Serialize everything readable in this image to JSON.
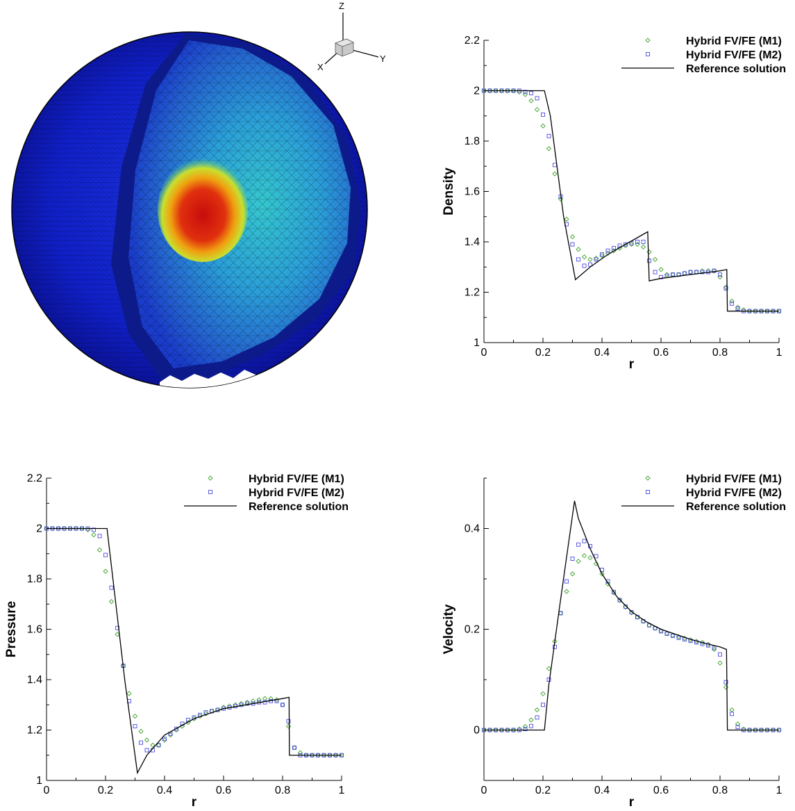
{
  "figure": {
    "triad": {
      "x_label": "X",
      "y_label": "Y",
      "z_label": "Z"
    }
  },
  "colors": {
    "m1": "#3fa32a",
    "m2": "#4a4ae0",
    "reference": "#000000",
    "mesh_low": "#0a10b8",
    "mesh_high": "#d10f0f"
  },
  "chart_data": [
    {
      "type": "line",
      "id": "density",
      "xlabel": "r",
      "ylabel": "Density",
      "xlim": [
        0,
        1
      ],
      "ylim": [
        1,
        2.2
      ],
      "xticks": [
        "0",
        "0.2",
        "0.4",
        "0.6",
        "0.8",
        "1"
      ],
      "yticks": [
        "1",
        "1.2",
        "1.4",
        "1.6",
        "1.8",
        "2",
        "2.2"
      ],
      "legend_position": "top-right",
      "grid": false,
      "series": [
        {
          "name": "Hybrid FV/FE (M1)",
          "marker": "diamond",
          "x": [
            0,
            0.02,
            0.04,
            0.06,
            0.08,
            0.1,
            0.12,
            0.14,
            0.16,
            0.18,
            0.2,
            0.22,
            0.24,
            0.26,
            0.28,
            0.3,
            0.32,
            0.34,
            0.36,
            0.38,
            0.4,
            0.42,
            0.44,
            0.46,
            0.48,
            0.5,
            0.52,
            0.54,
            0.56,
            0.58,
            0.6,
            0.62,
            0.64,
            0.66,
            0.68,
            0.7,
            0.72,
            0.74,
            0.76,
            0.78,
            0.8,
            0.82,
            0.84,
            0.86,
            0.88,
            0.9,
            0.92,
            0.94,
            0.96,
            0.98,
            1.0
          ],
          "y": [
            2.0,
            2.0,
            2.0,
            2.0,
            2.0,
            2.0,
            1.995,
            1.985,
            1.96,
            1.925,
            1.86,
            1.77,
            1.67,
            1.57,
            1.49,
            1.42,
            1.37,
            1.34,
            1.33,
            1.335,
            1.345,
            1.355,
            1.365,
            1.375,
            1.385,
            1.39,
            1.39,
            1.38,
            1.36,
            1.33,
            1.29,
            1.27,
            1.27,
            1.27,
            1.275,
            1.28,
            1.28,
            1.285,
            1.285,
            1.285,
            1.26,
            1.22,
            1.165,
            1.14,
            1.13,
            1.125,
            1.125,
            1.125,
            1.125,
            1.125,
            1.125
          ]
        },
        {
          "name": "Hybrid FV/FE (M2)",
          "marker": "square",
          "x": [
            0,
            0.02,
            0.04,
            0.06,
            0.08,
            0.1,
            0.12,
            0.14,
            0.16,
            0.18,
            0.2,
            0.22,
            0.24,
            0.26,
            0.28,
            0.3,
            0.32,
            0.34,
            0.36,
            0.38,
            0.4,
            0.42,
            0.44,
            0.46,
            0.48,
            0.5,
            0.52,
            0.54,
            0.56,
            0.58,
            0.6,
            0.62,
            0.64,
            0.66,
            0.68,
            0.7,
            0.72,
            0.74,
            0.76,
            0.78,
            0.8,
            0.82,
            0.84,
            0.86,
            0.88,
            0.9,
            0.92,
            0.94,
            0.96,
            0.98,
            1.0
          ],
          "y": [
            2.0,
            2.0,
            2.0,
            2.0,
            2.0,
            2.0,
            2.0,
            1.995,
            1.99,
            1.97,
            1.905,
            1.82,
            1.705,
            1.58,
            1.47,
            1.39,
            1.33,
            1.305,
            1.31,
            1.33,
            1.35,
            1.365,
            1.375,
            1.385,
            1.39,
            1.395,
            1.4,
            1.4,
            1.325,
            1.28,
            1.26,
            1.265,
            1.27,
            1.27,
            1.275,
            1.28,
            1.28,
            1.28,
            1.28,
            1.285,
            1.27,
            1.215,
            1.155,
            1.135,
            1.125,
            1.125,
            1.125,
            1.125,
            1.125,
            1.125,
            1.125
          ]
        },
        {
          "name": "Reference solution",
          "marker": "line",
          "x": [
            0,
            0.205,
            0.225,
            0.27,
            0.31,
            0.36,
            0.42,
            0.48,
            0.54,
            0.555,
            0.56,
            0.6,
            0.7,
            0.8,
            0.823,
            0.825,
            1.0
          ],
          "y": [
            2.0,
            2.0,
            1.9,
            1.5,
            1.25,
            1.3,
            1.35,
            1.39,
            1.43,
            1.44,
            1.245,
            1.255,
            1.27,
            1.285,
            1.29,
            1.125,
            1.125
          ]
        }
      ]
    },
    {
      "type": "line",
      "id": "pressure",
      "xlabel": "r",
      "ylabel": "Pressure",
      "xlim": [
        0,
        1
      ],
      "ylim": [
        1,
        2.2
      ],
      "xticks": [
        "0",
        "0.2",
        "0.4",
        "0.6",
        "0.8",
        "1"
      ],
      "yticks": [
        "1",
        "1.2",
        "1.4",
        "1.6",
        "1.8",
        "2",
        "2.2"
      ],
      "legend_position": "top-right",
      "grid": false,
      "series": [
        {
          "name": "Hybrid FV/FE (M1)",
          "marker": "diamond",
          "x": [
            0,
            0.02,
            0.04,
            0.06,
            0.08,
            0.1,
            0.12,
            0.14,
            0.16,
            0.18,
            0.2,
            0.22,
            0.24,
            0.26,
            0.28,
            0.3,
            0.32,
            0.34,
            0.36,
            0.38,
            0.4,
            0.42,
            0.44,
            0.46,
            0.48,
            0.5,
            0.52,
            0.54,
            0.56,
            0.58,
            0.6,
            0.62,
            0.64,
            0.66,
            0.68,
            0.7,
            0.72,
            0.74,
            0.76,
            0.78,
            0.8,
            0.82,
            0.84,
            0.86,
            0.88,
            0.9,
            0.92,
            0.94,
            0.96,
            0.98,
            1.0
          ],
          "y": [
            2.0,
            2.0,
            2.0,
            2.0,
            2.0,
            2.0,
            2.0,
            1.995,
            1.975,
            1.915,
            1.83,
            1.71,
            1.58,
            1.455,
            1.345,
            1.255,
            1.195,
            1.16,
            1.14,
            1.14,
            1.16,
            1.18,
            1.2,
            1.215,
            1.23,
            1.245,
            1.255,
            1.265,
            1.275,
            1.28,
            1.29,
            1.295,
            1.3,
            1.305,
            1.31,
            1.315,
            1.32,
            1.325,
            1.325,
            1.32,
            1.3,
            1.215,
            1.13,
            1.11,
            1.1,
            1.1,
            1.1,
            1.1,
            1.1,
            1.1,
            1.1
          ]
        },
        {
          "name": "Hybrid FV/FE (M2)",
          "marker": "square",
          "x": [
            0,
            0.02,
            0.04,
            0.06,
            0.08,
            0.1,
            0.12,
            0.14,
            0.16,
            0.18,
            0.2,
            0.22,
            0.24,
            0.26,
            0.28,
            0.3,
            0.32,
            0.34,
            0.36,
            0.38,
            0.4,
            0.42,
            0.44,
            0.46,
            0.48,
            0.5,
            0.52,
            0.54,
            0.56,
            0.58,
            0.6,
            0.62,
            0.64,
            0.66,
            0.68,
            0.7,
            0.72,
            0.74,
            0.76,
            0.78,
            0.8,
            0.82,
            0.84,
            0.86,
            0.88,
            0.9,
            0.92,
            0.94,
            0.96,
            0.98,
            1.0
          ],
          "y": [
            2.0,
            2.0,
            2.0,
            2.0,
            2.0,
            2.0,
            2.0,
            2.0,
            1.995,
            1.97,
            1.895,
            1.765,
            1.605,
            1.455,
            1.315,
            1.215,
            1.15,
            1.12,
            1.12,
            1.14,
            1.165,
            1.185,
            1.205,
            1.225,
            1.24,
            1.25,
            1.26,
            1.27,
            1.275,
            1.28,
            1.285,
            1.29,
            1.295,
            1.3,
            1.305,
            1.305,
            1.31,
            1.31,
            1.315,
            1.315,
            1.3,
            1.235,
            1.13,
            1.1,
            1.1,
            1.1,
            1.1,
            1.1,
            1.1,
            1.1,
            1.1
          ]
        },
        {
          "name": "Reference solution",
          "marker": "line",
          "x": [
            0,
            0.205,
            0.225,
            0.265,
            0.308,
            0.34,
            0.4,
            0.5,
            0.6,
            0.7,
            0.75,
            0.8,
            0.822,
            0.823,
            1.0
          ],
          "y": [
            2.0,
            2.0,
            1.8,
            1.4,
            1.03,
            1.1,
            1.18,
            1.245,
            1.285,
            1.305,
            1.315,
            1.325,
            1.33,
            1.1,
            1.1
          ]
        }
      ]
    },
    {
      "type": "line",
      "id": "velocity",
      "xlabel": "r",
      "ylabel": "Velocity",
      "xlim": [
        0,
        1
      ],
      "ylim": [
        -0.1,
        0.5
      ],
      "xticks": [
        "0",
        "0.2",
        "0.4",
        "0.6",
        "0.8",
        "1"
      ],
      "yticks": [
        "0",
        "0.2",
        "0.4"
      ],
      "legend_position": "top-right",
      "grid": false,
      "series": [
        {
          "name": "Hybrid FV/FE (M1)",
          "marker": "diamond",
          "x": [
            0,
            0.02,
            0.04,
            0.06,
            0.08,
            0.1,
            0.12,
            0.14,
            0.16,
            0.18,
            0.2,
            0.22,
            0.24,
            0.26,
            0.28,
            0.3,
            0.32,
            0.34,
            0.36,
            0.38,
            0.4,
            0.42,
            0.44,
            0.46,
            0.48,
            0.5,
            0.52,
            0.54,
            0.56,
            0.58,
            0.6,
            0.62,
            0.64,
            0.66,
            0.68,
            0.7,
            0.72,
            0.74,
            0.76,
            0.78,
            0.8,
            0.82,
            0.84,
            0.86,
            0.88,
            0.9,
            0.92,
            0.94,
            0.96,
            0.98,
            1.0
          ],
          "y": [
            0,
            0,
            0,
            0,
            0,
            0,
            0.002,
            0.007,
            0.02,
            0.04,
            0.072,
            0.122,
            0.176,
            0.232,
            0.275,
            0.31,
            0.335,
            0.346,
            0.342,
            0.33,
            0.31,
            0.29,
            0.272,
            0.257,
            0.244,
            0.233,
            0.224,
            0.216,
            0.208,
            0.202,
            0.197,
            0.192,
            0.188,
            0.185,
            0.182,
            0.179,
            0.176,
            0.174,
            0.17,
            0.16,
            0.133,
            0.085,
            0.04,
            0.012,
            0.002,
            0,
            0,
            0,
            0,
            0,
            0
          ]
        },
        {
          "name": "Hybrid FV/FE (M2)",
          "marker": "square",
          "x": [
            0,
            0.02,
            0.04,
            0.06,
            0.08,
            0.1,
            0.12,
            0.14,
            0.16,
            0.18,
            0.2,
            0.22,
            0.24,
            0.26,
            0.28,
            0.3,
            0.32,
            0.34,
            0.36,
            0.38,
            0.4,
            0.42,
            0.44,
            0.46,
            0.48,
            0.5,
            0.52,
            0.54,
            0.56,
            0.58,
            0.6,
            0.62,
            0.64,
            0.66,
            0.68,
            0.7,
            0.72,
            0.74,
            0.76,
            0.78,
            0.8,
            0.82,
            0.84,
            0.86,
            0.88,
            0.9,
            0.92,
            0.94,
            0.96,
            0.98,
            1.0
          ],
          "y": [
            0,
            0,
            0,
            0,
            0,
            0,
            0,
            0.002,
            0.008,
            0.025,
            0.05,
            0.1,
            0.165,
            0.232,
            0.295,
            0.34,
            0.368,
            0.375,
            0.365,
            0.345,
            0.318,
            0.295,
            0.274,
            0.258,
            0.245,
            0.234,
            0.224,
            0.216,
            0.208,
            0.202,
            0.196,
            0.191,
            0.187,
            0.183,
            0.18,
            0.177,
            0.174,
            0.171,
            0.168,
            0.163,
            0.15,
            0.095,
            0.032,
            0.006,
            0,
            0,
            0,
            0,
            0,
            0,
            0
          ]
        },
        {
          "name": "Reference solution",
          "marker": "line",
          "x": [
            0,
            0.205,
            0.22,
            0.26,
            0.307,
            0.32,
            0.36,
            0.4,
            0.45,
            0.5,
            0.55,
            0.6,
            0.65,
            0.7,
            0.75,
            0.8,
            0.822,
            0.825,
            1.0
          ],
          "y": [
            0,
            0,
            0.09,
            0.26,
            0.455,
            0.42,
            0.36,
            0.31,
            0.265,
            0.235,
            0.215,
            0.2,
            0.19,
            0.18,
            0.172,
            0.165,
            0.16,
            0,
            0
          ]
        }
      ]
    }
  ]
}
